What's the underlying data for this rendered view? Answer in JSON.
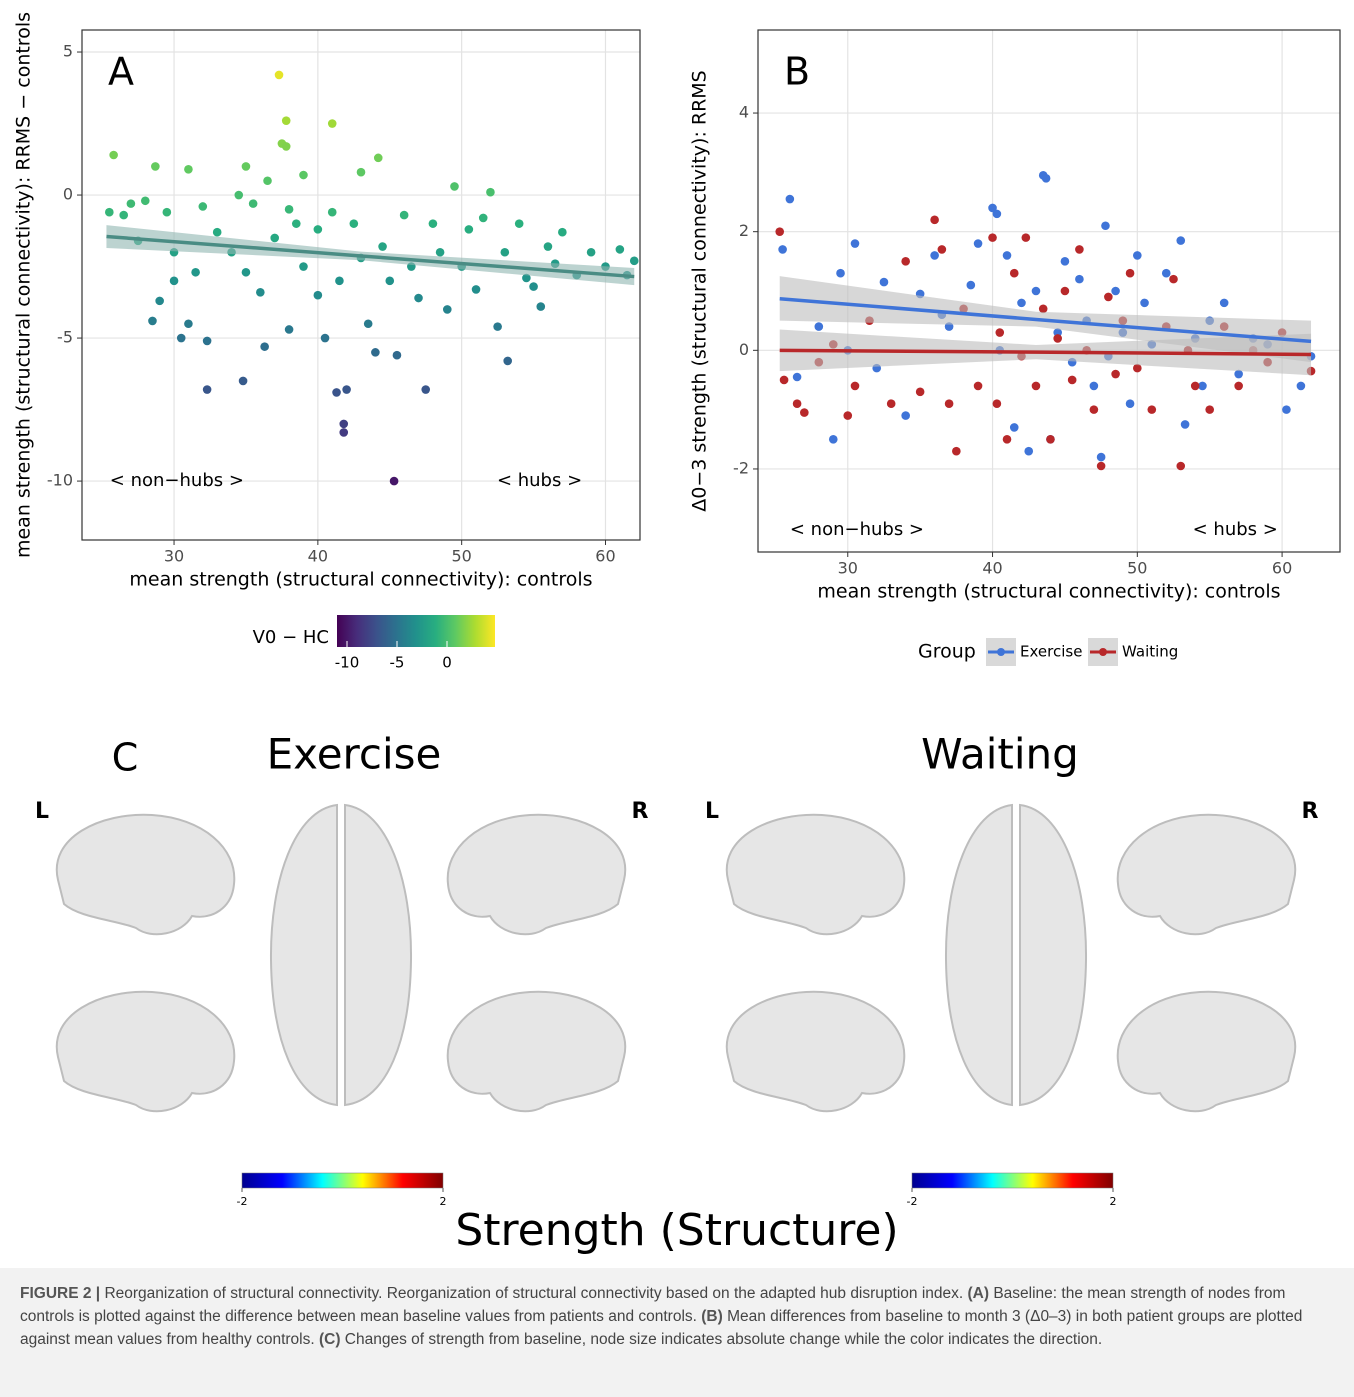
{
  "chart_data": [
    {
      "type": "scatter",
      "panel_label": "A",
      "xlabel": "mean strength (structural connectivity): controls",
      "ylabel": "mean strength (structural connectivity): RRMS − controls",
      "xlim": [
        23.6,
        62.4
      ],
      "ylim": [
        -12.06,
        5.77
      ],
      "xticks": [
        30,
        40,
        50,
        60
      ],
      "yticks": [
        -10,
        -5,
        0,
        5
      ],
      "grid": true,
      "annotations": [
        "< non−hubs >",
        "< hubs >"
      ],
      "x": [
        25.5,
        25.8,
        26.5,
        27,
        27.5,
        28,
        28.5,
        28.7,
        29,
        29.5,
        30,
        30,
        30.5,
        31,
        31,
        31.5,
        32,
        32.3,
        32.3,
        33,
        34,
        34.5,
        34.8,
        35,
        35,
        35.5,
        36,
        36.3,
        36.5,
        37,
        37.3,
        37.5,
        37.8,
        37.8,
        38,
        38,
        38.5,
        39,
        39,
        40,
        40,
        40.5,
        41,
        41,
        41.3,
        41.5,
        41.8,
        41.8,
        42,
        42.5,
        43,
        43,
        43.5,
        44,
        44.2,
        44.5,
        45,
        45.3,
        45.5,
        46,
        46.5,
        47,
        47.5,
        48,
        48.5,
        49,
        49.5,
        50,
        50.5,
        51,
        51.5,
        52,
        52.5,
        53,
        53.2,
        54,
        54.5,
        55,
        55.5,
        56,
        56.5,
        57,
        58,
        59,
        60,
        61,
        61.5,
        62
      ],
      "y": [
        -0.6,
        1.4,
        -0.7,
        -0.3,
        -1.6,
        -0.2,
        -4.4,
        1.0,
        -3.7,
        -0.6,
        -2.0,
        -3.0,
        -5.0,
        0.9,
        -4.5,
        -2.7,
        -0.4,
        -5.1,
        -6.8,
        -1.3,
        -2.0,
        0.0,
        -6.5,
        1.0,
        -2.7,
        -0.3,
        -3.4,
        -5.3,
        0.5,
        -1.5,
        4.2,
        1.8,
        2.6,
        1.7,
        -0.5,
        -4.7,
        -1.0,
        0.7,
        -2.5,
        -1.2,
        -3.5,
        -5.0,
        2.5,
        -0.6,
        -6.9,
        -3.0,
        -8.0,
        -8.3,
        -6.8,
        -1.0,
        -2.2,
        0.8,
        -4.5,
        -5.5,
        1.3,
        -1.8,
        -3.0,
        -10.0,
        -5.6,
        -0.7,
        -2.5,
        -3.6,
        -6.8,
        -1.0,
        -2.0,
        -4.0,
        0.3,
        -2.5,
        -1.2,
        -3.3,
        -0.8,
        0.1,
        -4.6,
        -2.0,
        -5.8,
        -1.0,
        -2.9,
        -3.2,
        -3.9,
        -1.8,
        -2.4,
        -1.3,
        -2.8,
        -2.0,
        -2.5,
        -1.9,
        -2.8,
        -2.3
      ],
      "fit": {
        "color": "#4a8c84",
        "band_color": "#8fb5b0",
        "x": [
          25.3,
          43,
          62
        ],
        "y": [
          -1.45,
          -2.13,
          -2.85
        ],
        "lower": [
          -1.85,
          -2.28,
          -3.15
        ],
        "upper": [
          -1.05,
          -1.98,
          -2.55
        ]
      },
      "colorbar": {
        "title": "V0 − HC",
        "lim": [
          -11,
          4.8
        ],
        "ticks": [
          -10,
          -5,
          0
        ],
        "colors": [
          "#440154",
          "#472d7b",
          "#3b528b",
          "#2c728e",
          "#21918c",
          "#28ae80",
          "#5ec962",
          "#addc30",
          "#fde725"
        ]
      }
    },
    {
      "type": "scatter",
      "panel_label": "B",
      "xlabel": "mean strength (structural connectivity): controls",
      "ylabel": "Δ0−3 strength (structural connectivity): RRMS",
      "xlim": [
        23.8,
        64.0
      ],
      "ylim": [
        -3.4,
        5.4
      ],
      "xticks": [
        30,
        40,
        50,
        60
      ],
      "yticks": [
        -2,
        0,
        2,
        4
      ],
      "grid": true,
      "annotations": [
        "< non−hubs >",
        "< hubs >"
      ],
      "legend_title": "Group",
      "series": [
        {
          "name": "Exercise",
          "color": "#3f74d8",
          "x": [
            25.5,
            26,
            26.5,
            28,
            29,
            29.5,
            30,
            30.5,
            32,
            32.5,
            34,
            35,
            36,
            36.5,
            37,
            38.5,
            39,
            40,
            40.3,
            40.5,
            41,
            41.5,
            42,
            42.5,
            43,
            43.5,
            43.7,
            44,
            44.5,
            45,
            45.5,
            46,
            46.5,
            47,
            47.5,
            47.8,
            48,
            48.5,
            49,
            49.5,
            50,
            50.5,
            51,
            52,
            53,
            53.3,
            54,
            54.5,
            55,
            56,
            57,
            58,
            59,
            60.3,
            61.3,
            62
          ],
          "y": [
            1.7,
            2.55,
            -0.45,
            0.4,
            -1.5,
            1.3,
            0.0,
            1.8,
            -0.3,
            1.15,
            -1.1,
            0.95,
            1.6,
            0.6,
            0.4,
            1.1,
            1.8,
            2.4,
            2.3,
            0.0,
            1.6,
            -1.3,
            0.8,
            -1.7,
            1.0,
            2.95,
            2.9,
            -1.5,
            0.3,
            1.5,
            -0.2,
            1.2,
            0.5,
            -0.6,
            -1.8,
            2.1,
            -0.1,
            1.0,
            0.3,
            -0.9,
            1.6,
            0.8,
            0.1,
            1.3,
            1.85,
            -1.25,
            0.2,
            -0.6,
            0.5,
            0.8,
            -0.4,
            0.2,
            0.1,
            -1.0,
            -0.6,
            -0.1
          ],
          "fit": {
            "color": "#3f74d8",
            "band_color": "#bdbdbd",
            "x": [
              25.3,
              43,
              62
            ],
            "y": [
              0.87,
              0.52,
              0.15
            ],
            "lower": [
              0.5,
              0.4,
              -0.2
            ],
            "upper": [
              1.25,
              0.65,
              0.5
            ]
          }
        },
        {
          "name": "Waiting",
          "color": "#b8282a",
          "x": [
            25.3,
            25.6,
            26.5,
            27,
            28,
            29,
            30,
            30.5,
            31.5,
            33,
            34,
            35,
            36,
            36.5,
            37,
            37.5,
            38,
            39,
            40,
            40.3,
            40.5,
            41,
            41.5,
            42,
            42.3,
            43,
            43.5,
            44,
            44.5,
            45,
            45.5,
            46,
            46.5,
            47,
            47.5,
            48,
            48.5,
            49,
            49.5,
            50,
            51,
            52,
            52.5,
            53,
            53.5,
            54,
            55,
            56,
            57,
            58,
            59,
            60,
            62
          ],
          "y": [
            2.0,
            -0.5,
            -0.9,
            -1.05,
            -0.2,
            0.1,
            -1.1,
            -0.6,
            0.5,
            -0.9,
            1.5,
            -0.7,
            2.2,
            1.7,
            -0.9,
            -1.7,
            0.7,
            -0.6,
            1.9,
            -0.9,
            0.3,
            -1.5,
            1.3,
            -0.1,
            1.9,
            -0.6,
            0.7,
            -1.5,
            0.2,
            1.0,
            -0.5,
            1.7,
            0.0,
            -1.0,
            -1.95,
            0.9,
            -0.4,
            0.5,
            1.3,
            -0.3,
            -1.0,
            0.4,
            1.2,
            -1.95,
            0.0,
            -0.6,
            -1.0,
            0.4,
            -0.6,
            0.0,
            -0.2,
            0.3,
            -0.35
          ],
          "fit": {
            "color": "#b8282a",
            "band_color": "#bdbdbd",
            "x": [
              25.3,
              43,
              62
            ],
            "y": [
              0.0,
              -0.03,
              -0.07
            ],
            "lower": [
              -0.35,
              -0.15,
              -0.42
            ],
            "upper": [
              0.35,
              0.09,
              0.28
            ]
          }
        }
      ]
    }
  ],
  "panel_c": {
    "label": "C",
    "title": "Strength (Structure)",
    "groups": [
      {
        "title": "Exercise",
        "left": "L",
        "right": "R",
        "colorbar": {
          "lim": [
            -2,
            2
          ],
          "ticks": [
            -2,
            2
          ],
          "colors": [
            "#00008f",
            "#0000ff",
            "#00ffff",
            "#ffff00",
            "#ff0000",
            "#800000"
          ]
        }
      },
      {
        "title": "Waiting",
        "left": "L",
        "right": "R",
        "colorbar": {
          "lim": [
            -2,
            2
          ],
          "ticks": [
            -2,
            2
          ],
          "colors": [
            "#00008f",
            "#0000ff",
            "#00ffff",
            "#ffff00",
            "#ff0000",
            "#800000"
          ]
        }
      }
    ]
  },
  "caption": {
    "runs": [
      {
        "text": "FIGURE 2 |",
        "bold": true
      },
      {
        "text": " Reorganization of structural connectivity. Reorganization of structural connectivity based on the adapted hub disruption index. ",
        "bold": false
      },
      {
        "text": "(A)",
        "bold": true
      },
      {
        "text": " Baseline: the mean strength of nodes from controls is plotted against the difference between mean baseline values from patients and controls. ",
        "bold": false
      },
      {
        "text": "(B)",
        "bold": true
      },
      {
        "text": " Mean differences from baseline to month 3 (Δ0–3) in both patient groups are plotted against mean values from healthy controls. ",
        "bold": false
      },
      {
        "text": "(C)",
        "bold": true
      },
      {
        "text": " Changes of strength from baseline, node size indicates absolute change while the color indicates the direction.",
        "bold": false
      }
    ]
  }
}
